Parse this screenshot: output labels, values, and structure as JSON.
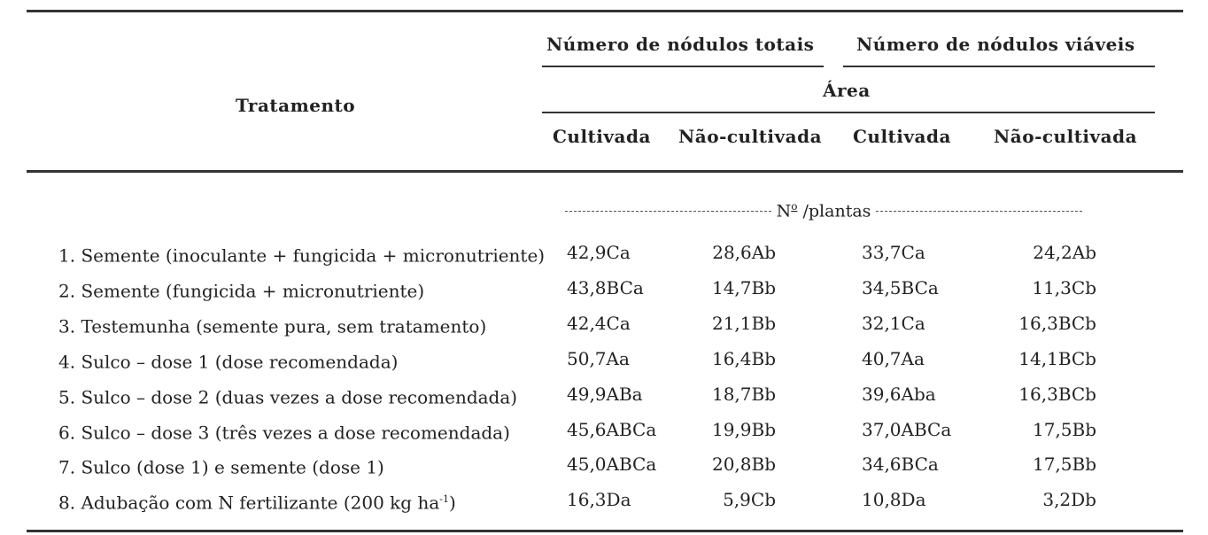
{
  "header": {
    "tratamento": "Tratamento",
    "group1": "Número de nódulos totais",
    "group2": "Número de nódulos viáveis",
    "area": "Área",
    "cols": [
      "Cultivada",
      "Não-cultivada",
      "Cultivada",
      "Não-cultivada"
    ]
  },
  "units": {
    "prefix": "N",
    "sup": "o",
    "suffix": " /plantas"
  },
  "rows": [
    {
      "label": "1. Semente (inoculante + fungicida + micronutriente)",
      "sup": "",
      "label_end": "",
      "v1": "42,9Ca",
      "v2": "28,6Ab",
      "v3": "33,7Ca",
      "v4": "24,2Ab"
    },
    {
      "label": "2. Semente (fungicida + micronutriente)",
      "sup": "",
      "label_end": "",
      "v1": "43,8BCa",
      "v2": "14,7Bb",
      "v3": "34,5BCa",
      "v4": "11,3Cb"
    },
    {
      "label": "3. Testemunha (semente pura, sem tratamento)",
      "sup": "",
      "label_end": "",
      "v1": "42,4Ca",
      "v2": "21,1Bb",
      "v3": "32,1Ca",
      "v4": "16,3BCb"
    },
    {
      "label": "4. Sulco – dose 1 (dose recomendada)",
      "sup": "",
      "label_end": "",
      "v1": "50,7Aa",
      "v2": "16,4Bb",
      "v3": "40,7Aa",
      "v4": "14,1BCb"
    },
    {
      "label": "5. Sulco – dose 2 (duas vezes a dose recomendada)",
      "sup": "",
      "label_end": "",
      "v1": "49,9ABa",
      "v2": "18,7Bb",
      "v3": "39,6Aba",
      "v4": "16,3BCb"
    },
    {
      "label": "6. Sulco – dose 3 (três vezes a dose recomendada)",
      "sup": "",
      "label_end": "",
      "v1": "45,6ABCa",
      "v2": "19,9Bb",
      "v3": "37,0ABCa",
      "v4": "17,5Bb"
    },
    {
      "label": "7. Sulco (dose 1) e semente (dose 1)",
      "sup": "",
      "label_end": "",
      "v1": "45,0ABCa",
      "v2": "20,8Bb",
      "v3": "34,6BCa",
      "v4": "17,5Bb"
    },
    {
      "label": "8. Adubação com N fertilizante (200 kg ha",
      "sup": "-1",
      "label_end": ")",
      "v1": "16,3Da",
      "v2": "5,9Cb",
      "v3": "10,8Da",
      "v4": "3,2Db"
    }
  ]
}
